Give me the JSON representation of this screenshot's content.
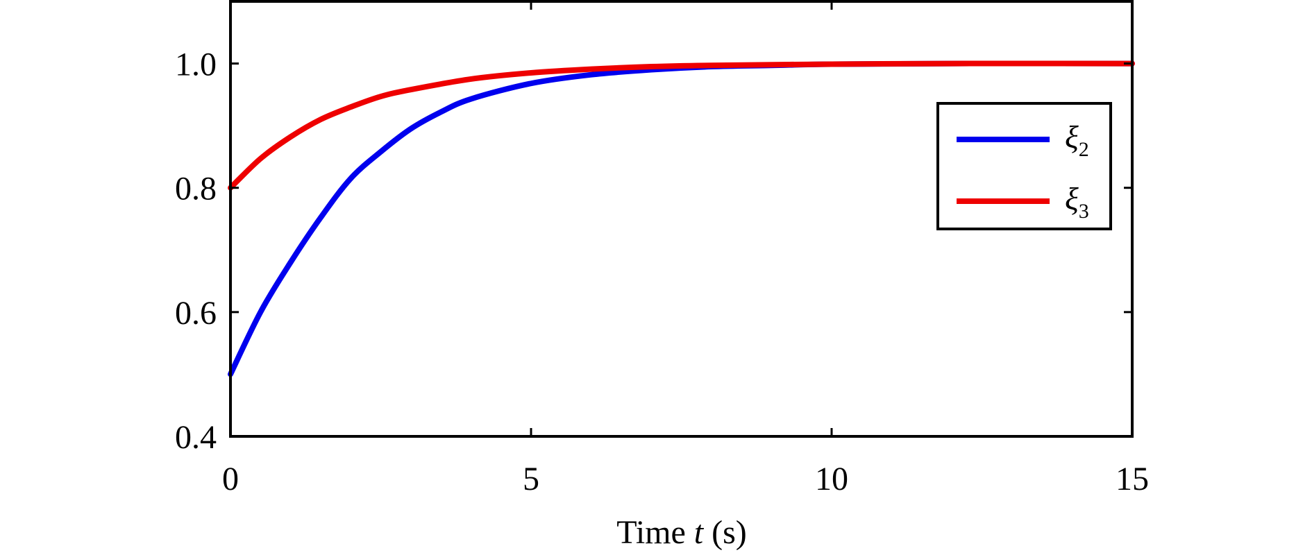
{
  "chart_data": {
    "type": "line",
    "title": "",
    "xlabel": {
      "prefix": "Time ",
      "var": "t",
      "suffix": " (s)"
    },
    "ylabel": "",
    "xlim": [
      0,
      15
    ],
    "ylim": [
      0.4,
      1.1
    ],
    "xticks": [
      0,
      5,
      10,
      15
    ],
    "xtick_labels": [
      "0",
      "5",
      "10",
      "15"
    ],
    "yticks": [
      0.4,
      0.6,
      0.8,
      1.0
    ],
    "ytick_labels": [
      "0.4",
      "0.6",
      "0.8",
      "1.0"
    ],
    "grid": false,
    "legend_position": "right",
    "series": [
      {
        "name": "ξ2",
        "symbol": "ξ",
        "subscript": "2",
        "color": "#0000ee",
        "x": [
          0,
          0.5,
          1,
          1.5,
          2,
          2.5,
          3,
          3.5,
          4,
          5,
          6,
          7,
          8,
          9,
          10,
          12,
          15
        ],
        "y": [
          0.5,
          0.6,
          0.68,
          0.752,
          0.815,
          0.858,
          0.895,
          0.922,
          0.943,
          0.968,
          0.982,
          0.99,
          0.995,
          0.997,
          0.999,
          1.0,
          1.0
        ]
      },
      {
        "name": "ξ3",
        "symbol": "ξ",
        "subscript": "3",
        "color": "#ee0000",
        "x": [
          0,
          0.5,
          1,
          1.5,
          2,
          2.5,
          3,
          4,
          5,
          6,
          7,
          8,
          10,
          12,
          15
        ],
        "y": [
          0.8,
          0.847,
          0.882,
          0.91,
          0.93,
          0.947,
          0.958,
          0.975,
          0.985,
          0.991,
          0.995,
          0.997,
          0.999,
          1.0,
          1.0
        ]
      }
    ]
  }
}
